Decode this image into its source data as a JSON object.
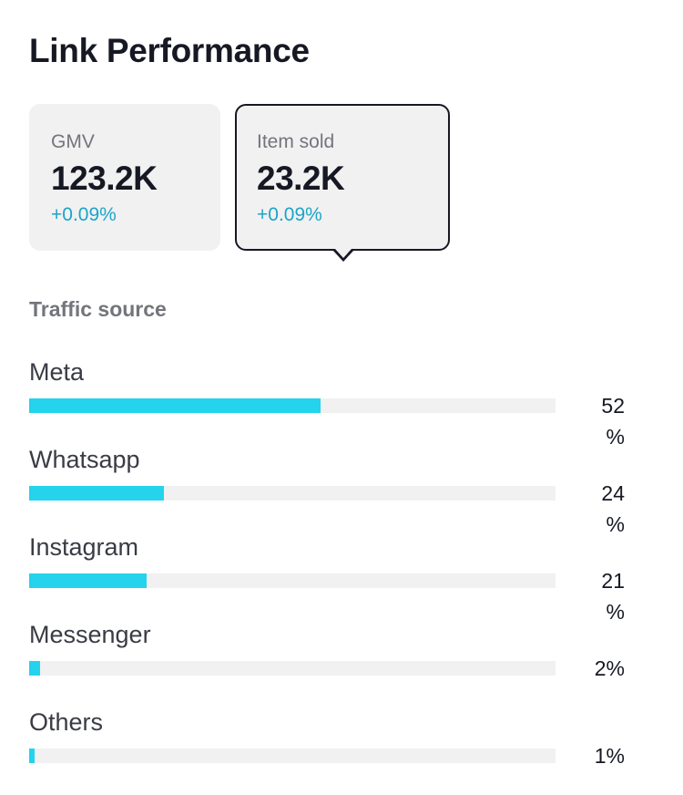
{
  "title": "Link Performance",
  "metrics": [
    {
      "label": "GMV",
      "value": "123.2K",
      "change": "+0.09%",
      "selected": false
    },
    {
      "label": "Item sold",
      "value": "23.2K",
      "change": "+0.09%",
      "selected": true
    }
  ],
  "traffic": {
    "title": "Traffic source",
    "bar_color": "#25d3ec",
    "items": [
      {
        "name": "Meta",
        "percent": 52,
        "percent_label": "52 %"
      },
      {
        "name": "Whatsapp",
        "percent": 24,
        "percent_label": "24 %"
      },
      {
        "name": "Instagram",
        "percent": 21,
        "percent_label": "21 %"
      },
      {
        "name": "Messenger",
        "percent": 2,
        "percent_label": "2%"
      },
      {
        "name": "Others",
        "percent": 1,
        "percent_label": "1%"
      }
    ]
  },
  "colors": {
    "accent_change": "#1ba4c9",
    "card_bg": "#f1f1f2",
    "selected_border": "#161823"
  }
}
